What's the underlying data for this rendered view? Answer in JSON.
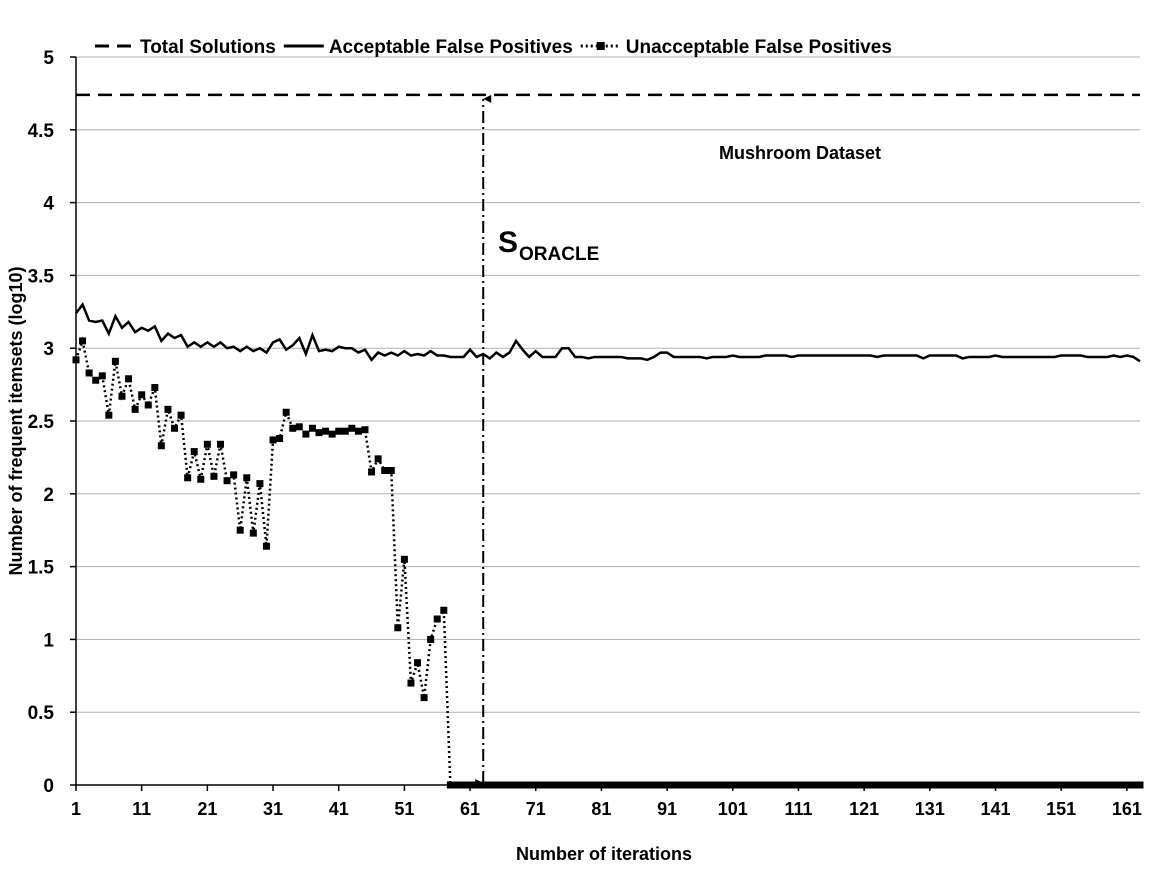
{
  "chart_data": {
    "type": "line",
    "xlabel": "Number of iterations",
    "ylabel": "Number of frequent itemsets (log10)",
    "xlim": [
      1,
      163
    ],
    "ylim": [
      0,
      5
    ],
    "xticks": [
      1,
      11,
      21,
      31,
      41,
      51,
      61,
      71,
      81,
      91,
      101,
      111,
      121,
      131,
      141,
      151,
      161
    ],
    "yticks": [
      0,
      0.5,
      1,
      1.5,
      2,
      2.5,
      3,
      3.5,
      4,
      4.5,
      5
    ],
    "grid": true,
    "legend": "top",
    "annotations": [
      {
        "text": "Mushroom Dataset"
      },
      {
        "text": "S",
        "subscript": "ORACLE",
        "x": 63
      }
    ],
    "x": [
      1,
      2,
      3,
      4,
      5,
      6,
      7,
      8,
      9,
      10,
      11,
      12,
      13,
      14,
      15,
      16,
      17,
      18,
      19,
      20,
      21,
      22,
      23,
      24,
      25,
      26,
      27,
      28,
      29,
      30,
      31,
      32,
      33,
      34,
      35,
      36,
      37,
      38,
      39,
      40,
      41,
      42,
      43,
      44,
      45,
      46,
      47,
      48,
      49,
      50,
      51,
      52,
      53,
      54,
      55,
      56,
      57,
      58,
      59,
      60,
      61,
      62,
      63,
      64,
      65,
      66,
      67,
      68,
      69,
      70,
      71,
      72,
      73,
      74,
      75,
      76,
      77,
      78,
      79,
      80,
      81,
      82,
      83,
      84,
      85,
      86,
      87,
      88,
      89,
      90,
      91,
      92,
      93,
      94,
      95,
      96,
      97,
      98,
      99,
      100,
      101,
      102,
      103,
      104,
      105,
      106,
      107,
      108,
      109,
      110,
      111,
      112,
      113,
      114,
      115,
      116,
      117,
      118,
      119,
      120,
      121,
      122,
      123,
      124,
      125,
      126,
      127,
      128,
      129,
      130,
      131,
      132,
      133,
      134,
      135,
      136,
      137,
      138,
      139,
      140,
      141,
      142,
      143,
      144,
      145,
      146,
      147,
      148,
      149,
      150,
      151,
      152,
      153,
      154,
      155,
      156,
      157,
      158,
      159,
      160,
      161,
      162,
      163
    ],
    "series": [
      {
        "name": "Total Solutions",
        "color": "#000000",
        "style": "dashed",
        "values": [
          4.74,
          4.74,
          4.74,
          4.74,
          4.74,
          4.74,
          4.74,
          4.74,
          4.74,
          4.74,
          4.74,
          4.74,
          4.74,
          4.74,
          4.74,
          4.74,
          4.74,
          4.74,
          4.74,
          4.74,
          4.74,
          4.74,
          4.74,
          4.74,
          4.74,
          4.74,
          4.74,
          4.74,
          4.74,
          4.74,
          4.74,
          4.74,
          4.74,
          4.74,
          4.74,
          4.74,
          4.74,
          4.74,
          4.74,
          4.74,
          4.74,
          4.74,
          4.74,
          4.74,
          4.74,
          4.74,
          4.74,
          4.74,
          4.74,
          4.74,
          4.74,
          4.74,
          4.74,
          4.74,
          4.74,
          4.74,
          4.74,
          4.74,
          4.74,
          4.74,
          4.74,
          4.74,
          4.74,
          4.74,
          4.74,
          4.74,
          4.74,
          4.74,
          4.74,
          4.74,
          4.74,
          4.74,
          4.74,
          4.74,
          4.74,
          4.74,
          4.74,
          4.74,
          4.74,
          4.74,
          4.74,
          4.74,
          4.74,
          4.74,
          4.74,
          4.74,
          4.74,
          4.74,
          4.74,
          4.74,
          4.74,
          4.74,
          4.74,
          4.74,
          4.74,
          4.74,
          4.74,
          4.74,
          4.74,
          4.74,
          4.74,
          4.74,
          4.74,
          4.74,
          4.74,
          4.74,
          4.74,
          4.74,
          4.74,
          4.74,
          4.74,
          4.74,
          4.74,
          4.74,
          4.74,
          4.74,
          4.74,
          4.74,
          4.74,
          4.74,
          4.74,
          4.74,
          4.74,
          4.74,
          4.74,
          4.74,
          4.74,
          4.74,
          4.74,
          4.74,
          4.74,
          4.74,
          4.74,
          4.74,
          4.74,
          4.74,
          4.74,
          4.74,
          4.74,
          4.74,
          4.74,
          4.74,
          4.74,
          4.74,
          4.74,
          4.74,
          4.74,
          4.74,
          4.74,
          4.74,
          4.74,
          4.74,
          4.74,
          4.74,
          4.74,
          4.74,
          4.74,
          4.74,
          4.74,
          4.74,
          4.74,
          4.74,
          4.74
        ]
      },
      {
        "name": "Acceptable False Positives",
        "color": "#000000",
        "style": "solid",
        "values": [
          3.24,
          3.3,
          3.19,
          3.18,
          3.19,
          3.1,
          3.22,
          3.14,
          3.18,
          3.11,
          3.14,
          3.12,
          3.15,
          3.05,
          3.1,
          3.07,
          3.09,
          3.01,
          3.04,
          3.01,
          3.04,
          3.01,
          3.04,
          3.0,
          3.01,
          2.98,
          3.01,
          2.98,
          3.0,
          2.97,
          3.04,
          3.06,
          2.99,
          3.02,
          3.07,
          2.96,
          3.09,
          2.98,
          2.99,
          2.98,
          3.01,
          3.0,
          3.0,
          2.97,
          2.99,
          2.92,
          2.97,
          2.95,
          2.97,
          2.95,
          2.98,
          2.95,
          2.96,
          2.95,
          2.98,
          2.95,
          2.95,
          2.94,
          2.94,
          2.94,
          2.99,
          2.94,
          2.96,
          2.93,
          2.97,
          2.94,
          2.97,
          3.05,
          2.99,
          2.94,
          2.98,
          2.94,
          2.94,
          2.94,
          3.0,
          3.0,
          2.94,
          2.94,
          2.93,
          2.94,
          2.94,
          2.94,
          2.94,
          2.94,
          2.93,
          2.93,
          2.93,
          2.92,
          2.94,
          2.97,
          2.97,
          2.94,
          2.94,
          2.94,
          2.94,
          2.94,
          2.93,
          2.94,
          2.94,
          2.94,
          2.95,
          2.94,
          2.94,
          2.94,
          2.94,
          2.95,
          2.95,
          2.95,
          2.95,
          2.94,
          2.95,
          2.95,
          2.95,
          2.95,
          2.95,
          2.95,
          2.95,
          2.95,
          2.95,
          2.95,
          2.95,
          2.95,
          2.94,
          2.95,
          2.95,
          2.95,
          2.95,
          2.95,
          2.95,
          2.93,
          2.95,
          2.95,
          2.95,
          2.95,
          2.95,
          2.93,
          2.94,
          2.94,
          2.94,
          2.94,
          2.95,
          2.94,
          2.94,
          2.94,
          2.94,
          2.94,
          2.94,
          2.94,
          2.94,
          2.94,
          2.95,
          2.95,
          2.95,
          2.95,
          2.94,
          2.94,
          2.94,
          2.94,
          2.95,
          2.94,
          2.95,
          2.94,
          2.91
        ]
      },
      {
        "name": "Unacceptable False Positives",
        "color": "#000000",
        "style": "dotted",
        "marker": "square",
        "values": [
          2.92,
          3.05,
          2.83,
          2.78,
          2.81,
          2.54,
          2.91,
          2.67,
          2.79,
          2.58,
          2.68,
          2.61,
          2.73,
          2.33,
          2.58,
          2.45,
          2.54,
          2.11,
          2.29,
          2.1,
          2.34,
          2.12,
          2.34,
          2.09,
          2.13,
          1.75,
          2.11,
          1.73,
          2.07,
          1.64,
          2.37,
          2.38,
          2.56,
          2.45,
          2.46,
          2.41,
          2.45,
          2.42,
          2.43,
          2.41,
          2.43,
          2.43,
          2.45,
          2.43,
          2.44,
          2.15,
          2.24,
          2.16,
          2.16,
          1.08,
          1.55,
          0.7,
          0.84,
          0.6,
          1.0,
          1.14,
          1.2,
          0,
          0,
          0,
          0,
          0,
          0,
          0,
          0,
          0,
          0,
          0,
          0,
          0,
          0,
          0,
          0,
          0,
          0,
          0,
          0,
          0,
          0,
          0,
          0,
          0,
          0,
          0,
          0,
          0,
          0,
          0,
          0,
          0,
          0,
          0,
          0,
          0,
          0,
          0,
          0,
          0,
          0,
          0,
          0,
          0,
          0,
          0,
          0,
          0,
          0,
          0,
          0,
          0,
          0,
          0,
          0,
          0,
          0,
          0,
          0,
          0,
          0,
          0,
          0,
          0,
          0,
          0,
          0,
          0,
          0,
          0,
          0,
          0,
          0,
          0,
          0,
          0,
          0,
          0,
          0,
          0,
          0,
          0,
          0,
          0,
          0,
          0,
          0,
          0,
          0,
          0,
          0,
          0,
          0,
          0,
          0,
          0,
          0,
          0,
          0,
          0,
          0,
          0,
          0,
          0,
          0
        ]
      }
    ]
  }
}
